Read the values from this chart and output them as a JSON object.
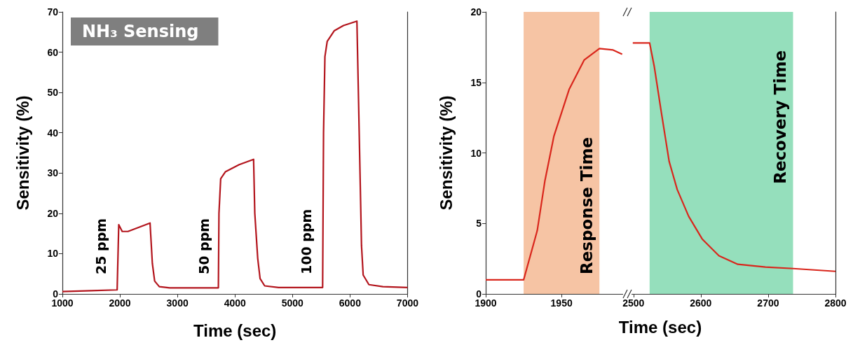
{
  "chart_data": [
    {
      "type": "line",
      "title": "NH₃ Sensing",
      "xlabel": "Time (sec)",
      "ylabel": "Sensitivity (%)",
      "marker": "none",
      "x": [
        1000,
        1500,
        1940,
        1952,
        1980,
        2040,
        2140,
        2340,
        2524,
        2564,
        2604,
        2685,
        2866,
        3712,
        3722,
        3752,
        3833,
        4074,
        4324,
        4345,
        4396,
        4437,
        4517,
        4759,
        5524,
        5540,
        5564,
        5604,
        5725,
        5886,
        6120,
        6160,
        6200,
        6229,
        6329,
        6571,
        7000
      ],
      "series": [
        {
          "color": "#b3151d",
          "values": [
            0.6,
            0.8,
            1.0,
            1.0,
            17.2,
            15.5,
            15.5,
            16.6,
            17.6,
            7.6,
            3.2,
            1.8,
            1.5,
            1.5,
            20.0,
            28.6,
            30.3,
            32.1,
            33.4,
            20.0,
            8.8,
            3.8,
            2.0,
            1.6,
            1.6,
            40.0,
            58.9,
            62.7,
            65.3,
            66.6,
            67.7,
            40.0,
            12.0,
            4.7,
            2.3,
            1.8,
            1.6
          ]
        }
      ],
      "xlim": [
        1000,
        7000
      ],
      "xticks": [
        1000,
        2000,
        3000,
        4000,
        5000,
        6000,
        7000
      ],
      "ylim": [
        0,
        70
      ],
      "yticks": [
        0,
        10,
        20,
        30,
        40,
        50,
        60,
        70
      ],
      "annotations": [
        "25 ppm",
        "50 ppm",
        "100 ppm"
      ]
    },
    {
      "type": "line",
      "ylabel": "Sensitivity (%)",
      "marker": "none",
      "x": [
        1900,
        1925,
        1934,
        1939,
        1945,
        1955,
        1965,
        1975,
        1984,
        1990
      ],
      "series": [
        {
          "color": "#d9261c",
          "values": [
            1.0,
            1.0,
            4.5,
            8.0,
            11.2,
            14.5,
            16.6,
            17.4,
            17.3,
            17.0
          ]
        }
      ],
      "xlim": [
        1900,
        1992
      ],
      "xticks": [
        1900,
        1950
      ],
      "ylim": [
        0,
        20
      ],
      "yticks": [
        0,
        5,
        10,
        15,
        20
      ],
      "bands": [
        {
          "axis": "x",
          "from": 1925,
          "to": 1975,
          "label": "Response Time",
          "color": "#f6c4a4"
        }
      ]
    },
    {
      "type": "line",
      "xlabel": "Time (sec)",
      "marker": "none",
      "tick_labels": "x",
      "x": [
        2499,
        2524,
        2531,
        2541,
        2553,
        2565,
        2582,
        2602,
        2627,
        2655,
        2696,
        2737,
        2800
      ],
      "series": [
        {
          "color": "#d9261c",
          "values": [
            17.8,
            17.8,
            16.1,
            13.0,
            9.4,
            7.4,
            5.5,
            3.9,
            2.7,
            2.1,
            1.9,
            1.8,
            1.6
          ]
        }
      ],
      "xlim": [
        2494,
        2800
      ],
      "xticks": [
        2500,
        2600,
        2700,
        2800
      ],
      "ylim": [
        0,
        20
      ],
      "yticks": [
        0,
        5,
        10,
        15,
        20
      ],
      "bands": [
        {
          "axis": "x",
          "from": 2524,
          "to": 2737,
          "label": "Recovery Time",
          "color": "#95dfbc"
        }
      ]
    }
  ]
}
